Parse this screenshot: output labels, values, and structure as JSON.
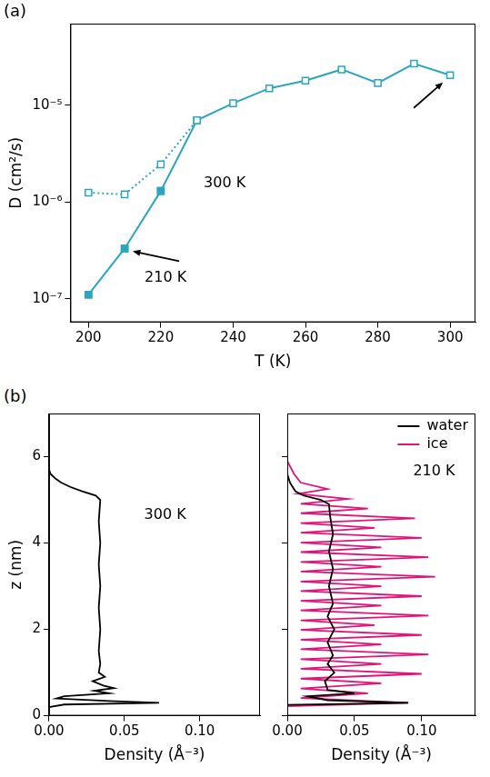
{
  "chart_data": [
    {
      "panel": "(a)",
      "type": "line",
      "x_label": "T (K)",
      "y_label": "D (cm²/s)",
      "x": [
        200,
        210,
        220,
        230,
        240,
        250,
        260,
        270,
        280,
        290,
        300
      ],
      "series": [
        {
          "color": "#2ca5c0",
          "marker": "square_open",
          "line_style": "solid",
          "values": [
            1.1e-07,
            3.3e-07,
            1.3e-06,
            7e-06,
            1.05e-05,
            1.5e-05,
            1.8e-05,
            2.35e-05,
            1.7e-05,
            2.7e-05,
            2.05e-05
          ]
        },
        {
          "color": "#2ca5c0",
          "marker": "square",
          "line_style": "none",
          "values": [
            1.1e-07,
            3.3e-07,
            1.3e-06,
            null,
            null,
            null,
            null,
            null,
            null,
            null,
            null
          ]
        },
        {
          "color": "#2ca5c0",
          "marker": "square_open",
          "line_style": "dotted",
          "values": [
            1.25e-06,
            1.2e-06,
            2.45e-06,
            7e-06,
            null,
            null,
            null,
            null,
            null,
            null,
            null
          ]
        }
      ],
      "xlim": [
        195,
        307
      ],
      "xticks": [
        200,
        220,
        240,
        260,
        280,
        300
      ],
      "ylim": [
        5.7e-08,
        7e-05
      ],
      "yticks": [
        {
          "value": 1e-07,
          "label": "10⁻⁷"
        },
        {
          "value": 1e-06,
          "label": "10⁻⁶"
        },
        {
          "value": 1e-05,
          "label": "10⁻⁵"
        }
      ],
      "log": "y",
      "grid": false,
      "annotations": [
        {
          "text": "300 K",
          "x": 300
        },
        {
          "text": "210 K",
          "x": 210
        }
      ]
    },
    {
      "panel": "(b)",
      "type": "line",
      "x_label": "Density (Å⁻³)",
      "y_label": "z (nm)",
      "series": [
        {
          "color": "#000000",
          "line_style": "solid",
          "x": [
            0.0,
            0.01,
            0.073,
            0.04,
            0.005,
            0.01,
            0.04,
            0.03,
            0.043,
            0.036,
            0.029,
            0.037,
            0.033,
            0.034,
            0.033,
            0.034,
            0.033,
            0.034,
            0.033,
            0.034,
            0.033,
            0.034,
            0.031,
            0.022,
            0.014,
            0.008,
            0.004,
            0.001,
            0.0
          ],
          "y": [
            0.2,
            0.26,
            0.3,
            0.34,
            0.4,
            0.45,
            0.52,
            0.58,
            0.64,
            0.7,
            0.8,
            0.9,
            1.0,
            1.2,
            1.5,
            2.0,
            2.5,
            3.0,
            3.5,
            4.0,
            4.5,
            5.0,
            5.1,
            5.2,
            5.3,
            5.4,
            5.5,
            5.6,
            5.7
          ]
        }
      ],
      "xlim": [
        0,
        0.14
      ],
      "xticks": [
        {
          "value": 0,
          "label": "0.00"
        },
        {
          "value": 0.05,
          "label": "0.05"
        },
        {
          "value": 0.1,
          "label": "0.10"
        }
      ],
      "ylim": [
        0,
        7
      ],
      "yticks": [
        0,
        2,
        4,
        6
      ],
      "grid": false,
      "annotations": [
        {
          "text": "300 K"
        }
      ]
    },
    {
      "type": "line",
      "x_label": "Density (Å⁻³)",
      "series": [
        {
          "name": "water",
          "color": "#000000",
          "line_style": "solid",
          "x": [
            0.0,
            0.09,
            0.03,
            0.015,
            0.05,
            0.03,
            0.028,
            0.035,
            0.03,
            0.034,
            0.03,
            0.035,
            0.03,
            0.034,
            0.031,
            0.034,
            0.031,
            0.034,
            0.032,
            0.031,
            0.025,
            0.012,
            0.006,
            0.002,
            0.0
          ],
          "y": [
            0.25,
            0.3,
            0.36,
            0.45,
            0.52,
            0.6,
            0.8,
            1.0,
            1.2,
            1.4,
            1.7,
            2.0,
            2.3,
            2.6,
            3.0,
            3.4,
            3.8,
            4.2,
            4.6,
            4.9,
            5.0,
            5.1,
            5.2,
            5.4,
            5.6
          ]
        },
        {
          "name": "ice",
          "color": "#e0157a",
          "line_style": "solid",
          "x": [
            0.0,
            0.09,
            0.01,
            0.06,
            0.01,
            0.07,
            0.01,
            0.1,
            0.01,
            0.07,
            0.01,
            0.105,
            0.01,
            0.07,
            0.01,
            0.1,
            0.01,
            0.065,
            0.01,
            0.105,
            0.01,
            0.07,
            0.01,
            0.1,
            0.01,
            0.07,
            0.01,
            0.11,
            0.01,
            0.07,
            0.01,
            0.105,
            0.01,
            0.07,
            0.01,
            0.1,
            0.01,
            0.065,
            0.01,
            0.095,
            0.01,
            0.06,
            0.01,
            0.045,
            0.008,
            0.03,
            0.01,
            0.005,
            0.0
          ],
          "y": [
            0.22,
            0.3,
            0.41,
            0.52,
            0.63,
            0.75,
            0.86,
            0.97,
            1.09,
            1.2,
            1.31,
            1.42,
            1.54,
            1.65,
            1.76,
            1.87,
            1.99,
            2.1,
            2.21,
            2.32,
            2.44,
            2.55,
            2.66,
            2.77,
            2.89,
            3.0,
            3.11,
            3.22,
            3.34,
            3.45,
            3.56,
            3.67,
            3.79,
            3.9,
            4.01,
            4.12,
            4.24,
            4.35,
            4.46,
            4.57,
            4.69,
            4.8,
            4.91,
            5.02,
            5.14,
            5.25,
            5.4,
            5.6,
            5.9
          ]
        }
      ],
      "xlim": [
        0,
        0.14
      ],
      "xticks": [
        {
          "value": 0,
          "label": "0.00"
        },
        {
          "value": 0.05,
          "label": "0.05"
        },
        {
          "value": 0.1,
          "label": "0.10"
        }
      ],
      "ylim": [
        0,
        7
      ],
      "yticks": [
        0,
        2,
        4,
        6
      ],
      "grid": false,
      "tick_labels": "x",
      "legend": "upper right",
      "annotations": [
        {
          "text": "210 K"
        }
      ]
    }
  ]
}
